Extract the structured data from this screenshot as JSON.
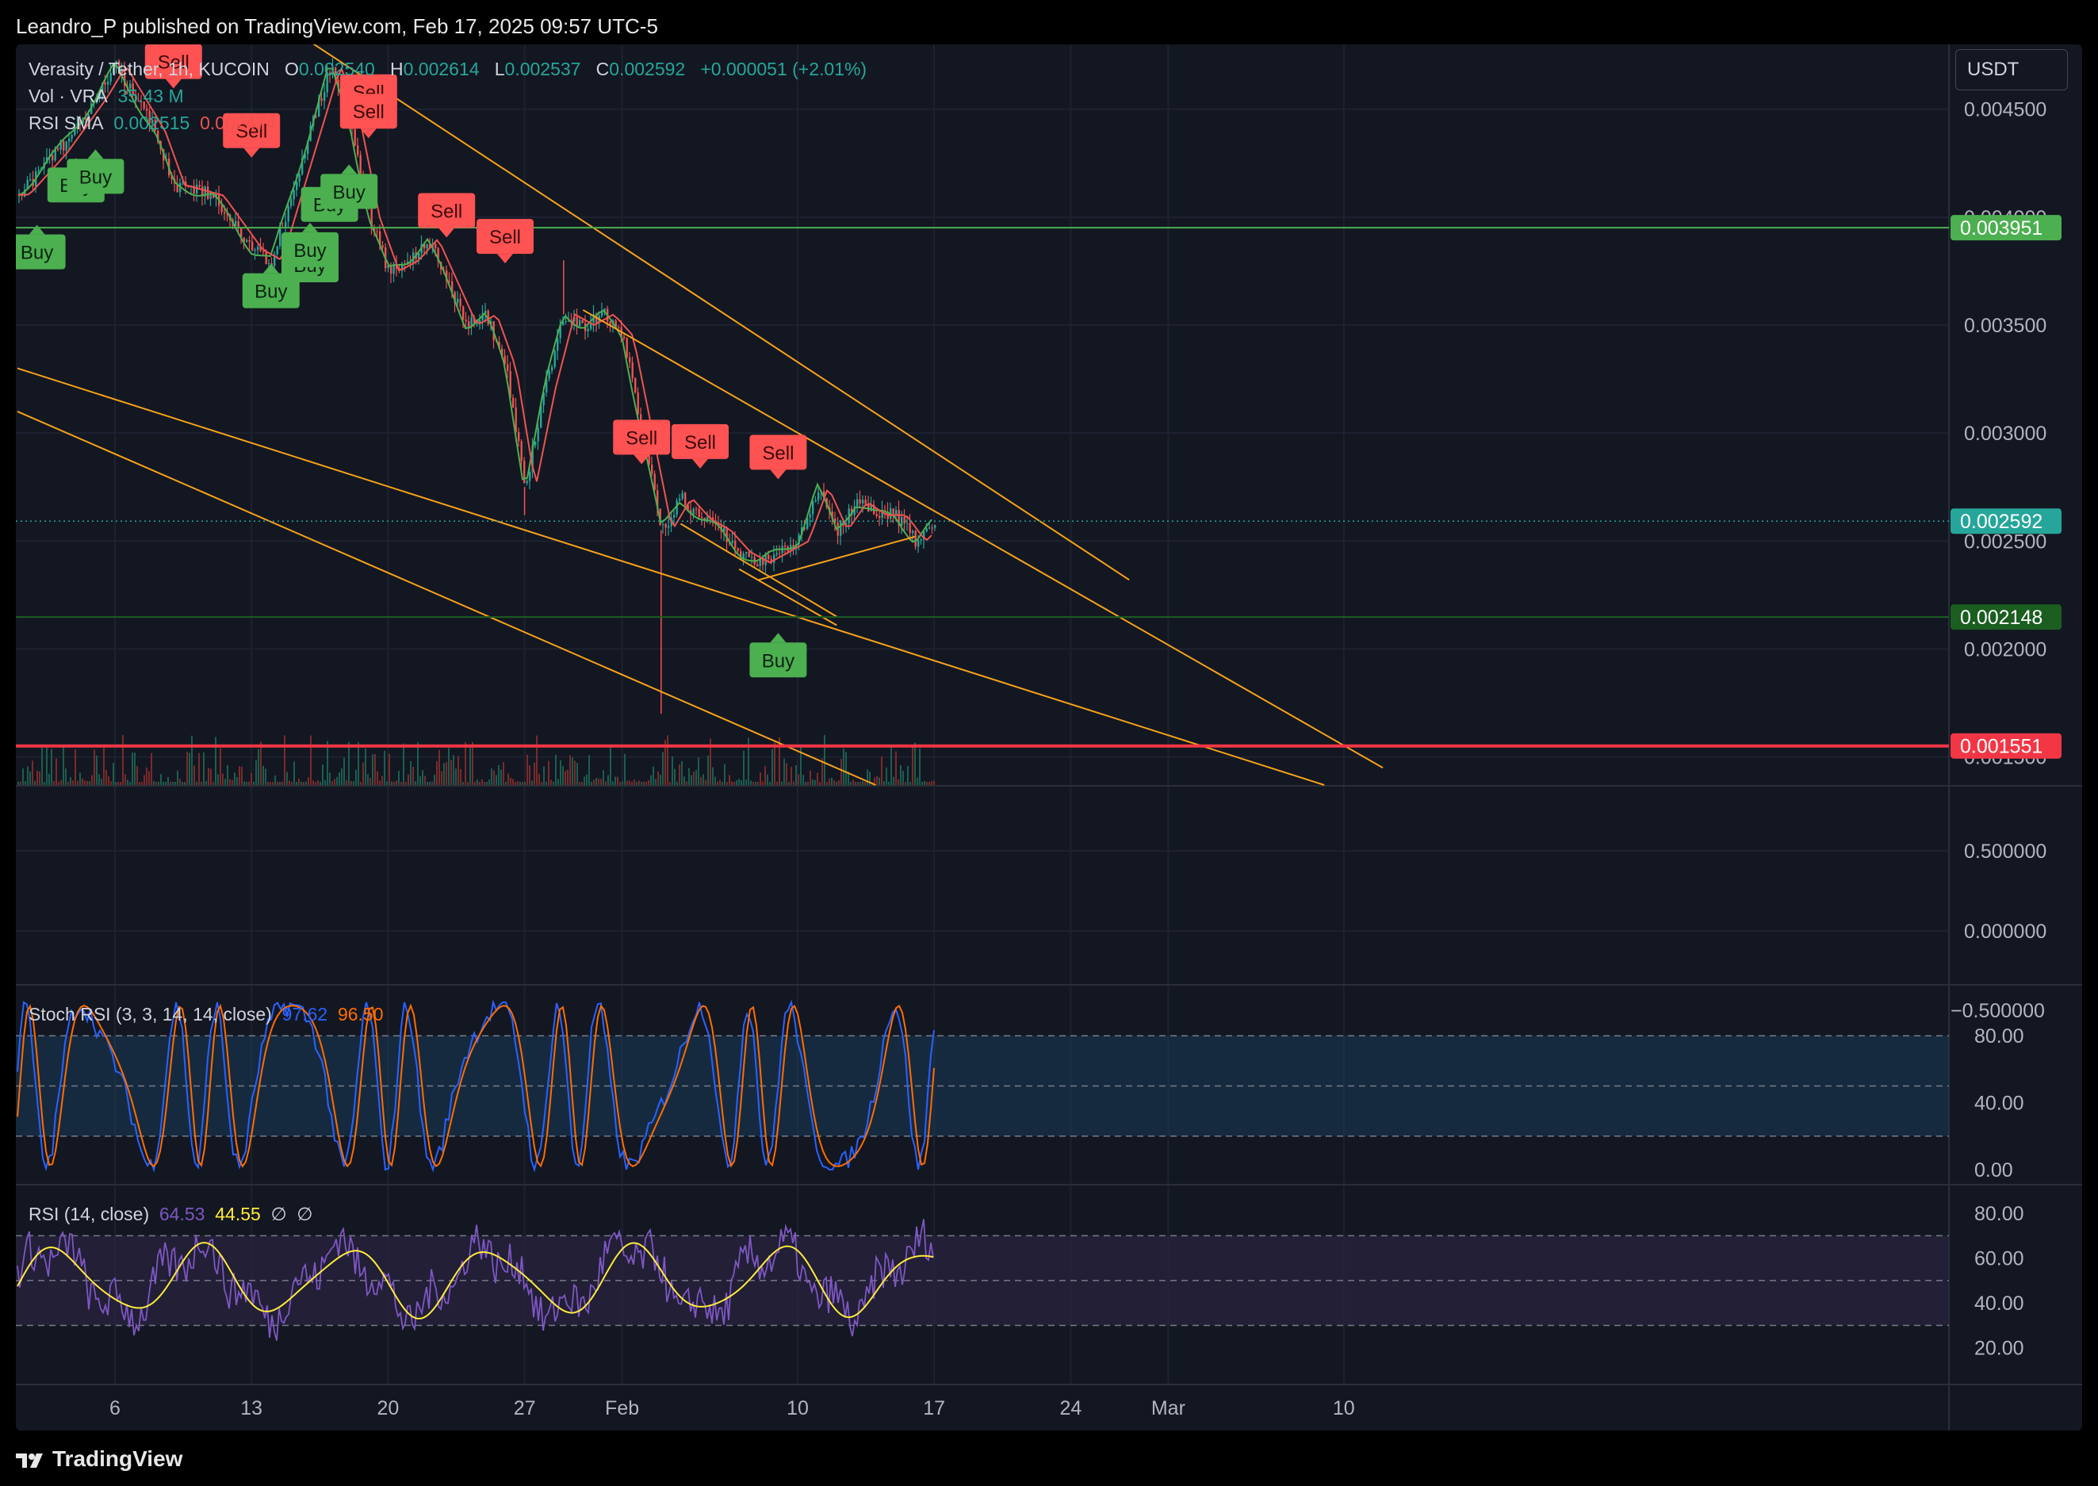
{
  "header": {
    "published_line": "Leandro_P published on TradingView.com, Feb 17, 2025 09:57 UTC-5"
  },
  "legend": {
    "symbol": "Verasity / Tether, 1h, KUCOIN",
    "o_label": "O",
    "o": "0.002540",
    "h_label": "H",
    "h": "0.002614",
    "l_label": "L",
    "l": "0.002537",
    "c_label": "C",
    "c": "0.002592",
    "change": "+0.000051 (+2.01%)",
    "vol_label": "Vol · VRA",
    "vol_value": "35.43 M",
    "rsi_sma_label": "RSI SMA",
    "rsi_sma_a": "0.002515",
    "rsi_sma_b": "0.002474",
    "stoch_label": "Stoch RSI (3, 3, 14, 14, close)",
    "stoch_k": "97.62",
    "stoch_d": "96.50",
    "rsi_label": "RSI (14, close)",
    "rsi_value": "64.53",
    "rsi_ma": "44.55",
    "rsi_na1": "∅",
    "rsi_na2": "∅"
  },
  "currency": "USDT",
  "footer": {
    "brand": "TradingView"
  },
  "colors": {
    "background": "#131722",
    "up": "#26a69a",
    "down": "#ef5350",
    "trendline": "#f7a21b",
    "support_green": "#4caf50",
    "resistance_red": "#f23645",
    "stoch_k": "#2962ff",
    "stoch_d": "#ff6d00",
    "rsi": "#7e57c2",
    "rsi_ma": "#ffeb3b"
  },
  "chart_data": [
    {
      "type": "line",
      "title": "Verasity / Tether, 1h, KUCOIN",
      "x_tick_labels": [
        "6",
        "13",
        "20",
        "27",
        "Feb",
        "10",
        "17",
        "24",
        "Mar",
        "10"
      ],
      "y_tick_labels": [
        "0.004500",
        "0.004000",
        "0.003500",
        "0.003000",
        "0.002500",
        "0.002000",
        "0.001500"
      ],
      "y_range": [
        0.00137,
        0.0048
      ],
      "price_path": [
        [
          "2025-01-01",
          0.0041
        ],
        [
          "2025-01-03",
          0.0043
        ],
        [
          "2025-01-05",
          0.00455
        ],
        [
          "2025-01-06",
          0.0047
        ],
        [
          "2025-01-08",
          0.0044
        ],
        [
          "2025-01-09",
          0.00415
        ],
        [
          "2025-01-11",
          0.0041
        ],
        [
          "2025-01-13",
          0.00385
        ],
        [
          "2025-01-14",
          0.0038
        ],
        [
          "2025-01-15",
          0.0041
        ],
        [
          "2025-01-16",
          0.0044
        ],
        [
          "2025-01-17",
          0.0047
        ],
        [
          "2025-01-18",
          0.00445
        ],
        [
          "2025-01-19",
          0.004
        ],
        [
          "2025-01-20",
          0.00375
        ],
        [
          "2025-01-21",
          0.0038
        ],
        [
          "2025-01-22",
          0.0039
        ],
        [
          "2025-01-23",
          0.0037
        ],
        [
          "2025-01-24",
          0.0035
        ],
        [
          "2025-01-25",
          0.00355
        ],
        [
          "2025-01-26",
          0.0033
        ],
        [
          "2025-01-27",
          0.00275
        ],
        [
          "2025-01-28",
          0.0032
        ],
        [
          "2025-01-29",
          0.00355
        ],
        [
          "2025-01-30",
          0.0035
        ],
        [
          "2025-01-31",
          0.00355
        ],
        [
          "2025-02-01",
          0.00345
        ],
        [
          "2025-02-02",
          0.003
        ],
        [
          "2025-02-03",
          0.00255
        ],
        [
          "2025-02-04",
          0.0027
        ],
        [
          "2025-02-05",
          0.0026
        ],
        [
          "2025-02-06",
          0.00255
        ],
        [
          "2025-02-07",
          0.00245
        ],
        [
          "2025-02-08",
          0.0024
        ],
        [
          "2025-02-09",
          0.00245
        ],
        [
          "2025-02-10",
          0.0025
        ],
        [
          "2025-02-11",
          0.00275
        ],
        [
          "2025-02-12",
          0.00255
        ],
        [
          "2025-02-13",
          0.00268
        ],
        [
          "2025-02-14",
          0.00262
        ],
        [
          "2025-02-15",
          0.00262
        ],
        [
          "2025-02-16",
          0.0025
        ],
        [
          "2025-02-17",
          0.00259
        ]
      ],
      "price_labels": [
        {
          "value": 0.003951,
          "text": "0.003951",
          "color": "#4caf50",
          "line": true
        },
        {
          "value": 0.002592,
          "text": "0.002592",
          "color": "#26a69a",
          "line": "dotted"
        },
        {
          "value": 0.002148,
          "text": "0.002148",
          "color": "#1b5e20",
          "line": true
        },
        {
          "value": 0.001551,
          "text": "0.001551",
          "color": "#f23645",
          "line": true
        }
      ],
      "trendlines": [
        [
          [
            "2025-01-12",
            0.00505
          ],
          [
            "2025-02-27",
            0.00232
          ]
        ],
        [
          [
            "2025-01-30",
            0.00357
          ],
          [
            "2025-03-12",
            0.00145
          ]
        ],
        [
          [
            "2025-01-01",
            0.0033
          ],
          [
            "2025-03-09",
            0.00137
          ]
        ],
        [
          [
            "2025-01-01",
            0.0031
          ],
          [
            "2025-02-14",
            0.00137
          ]
        ],
        [
          [
            "2025-02-04",
            0.00258
          ],
          [
            "2025-02-12",
            0.00215
          ]
        ],
        [
          [
            "2025-02-08",
            0.00232
          ],
          [
            "2025-02-16",
            0.00252
          ]
        ],
        [
          [
            "2025-02-07",
            0.00237
          ],
          [
            "2025-02-12",
            0.00211
          ]
        ]
      ],
      "signals": [
        {
          "label": "Buy",
          "date": "2025-01-02",
          "price": 0.00392
        },
        {
          "label": "Buy",
          "date": "2025-01-04",
          "price": 0.00423
        },
        {
          "label": "Buy",
          "date": "2025-01-05",
          "price": 0.00427
        },
        {
          "label": "Sell",
          "date": "2025-01-09",
          "price": 0.00464
        },
        {
          "label": "Sell",
          "date": "2025-01-13",
          "price": 0.00432
        },
        {
          "label": "Buy",
          "date": "2025-01-14",
          "price": 0.00374
        },
        {
          "label": "Buy",
          "date": "2025-01-16",
          "price": 0.00386
        },
        {
          "label": "Buy",
          "date": "2025-01-16",
          "price": 0.00393
        },
        {
          "label": "Buy",
          "date": "2025-01-17",
          "price": 0.00414
        },
        {
          "label": "Buy",
          "date": "2025-01-18",
          "price": 0.0042
        },
        {
          "label": "Sell",
          "date": "2025-01-19",
          "price": 0.0045
        },
        {
          "label": "Sell",
          "date": "2025-01-19",
          "price": 0.00441
        },
        {
          "label": "Sell",
          "date": "2025-01-23",
          "price": 0.00395
        },
        {
          "label": "Sell",
          "date": "2025-01-26",
          "price": 0.00383
        },
        {
          "label": "Sell",
          "date": "2025-02-02",
          "price": 0.0029
        },
        {
          "label": "Sell",
          "date": "2025-02-05",
          "price": 0.00288
        },
        {
          "label": "Sell",
          "date": "2025-02-09",
          "price": 0.00283
        },
        {
          "label": "Buy",
          "date": "2025-02-09",
          "price": 0.00203
        }
      ]
    },
    {
      "type": "line",
      "title": "Vol · VRA",
      "y_tick_labels": [
        "0.500000",
        "0.000000",
        "−0.500000"
      ]
    },
    {
      "type": "line",
      "title": "Stoch RSI (3, 3, 14, 14, close)",
      "series": [
        {
          "name": "97.62"
        },
        {
          "name": "96.50"
        }
      ],
      "y_tick_labels": [
        "80.00",
        "40.00",
        "0.00"
      ],
      "y_range": [
        0,
        100
      ],
      "bands": [
        20,
        50,
        80
      ]
    },
    {
      "type": "line",
      "title": "RSI (14, close)",
      "series": [
        {
          "name": "64.53"
        },
        {
          "name": "44.55"
        }
      ],
      "y_tick_labels": [
        "80.00",
        "60.00",
        "40.00",
        "20.00"
      ],
      "y_range": [
        10,
        85
      ],
      "bands": [
        30,
        50,
        70
      ]
    }
  ]
}
